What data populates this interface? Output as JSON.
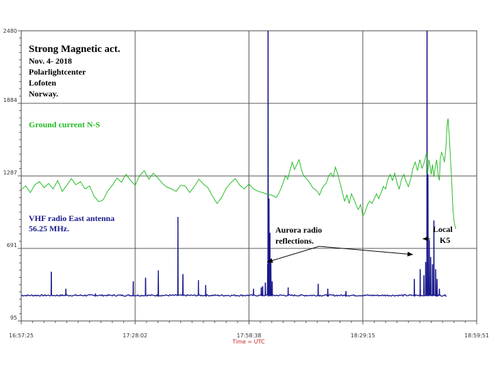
{
  "chart_data": {
    "type": "line",
    "title": "Strong Magnetic act.",
    "info_lines": [
      "Nov. 4- 2018",
      "Polarlightcenter",
      "Lofoten",
      "Norway."
    ],
    "xlabel": "Time = UTC",
    "x_ticks": [
      "16:57:25",
      "17:28:02",
      "17:58:38",
      "18:29:15",
      "18:59:51"
    ],
    "y_ticks": [
      "95",
      "691",
      "1287",
      "1884",
      "2480"
    ],
    "ylim": [
      95,
      2480
    ],
    "x_range_fraction": [
      0,
      1
    ],
    "grid": true,
    "series": [
      {
        "name": "Ground current N-S",
        "name_lines": [
          "Ground current N-S"
        ],
        "color": "#22bb22",
        "points": [
          [
            0.0,
            1175
          ],
          [
            0.01,
            1205
          ],
          [
            0.02,
            1150
          ],
          [
            0.03,
            1215
          ],
          [
            0.04,
            1240
          ],
          [
            0.05,
            1190
          ],
          [
            0.06,
            1225
          ],
          [
            0.07,
            1180
          ],
          [
            0.08,
            1250
          ],
          [
            0.09,
            1160
          ],
          [
            0.1,
            1210
          ],
          [
            0.11,
            1265
          ],
          [
            0.12,
            1215
          ],
          [
            0.13,
            1240
          ],
          [
            0.14,
            1180
          ],
          [
            0.15,
            1205
          ],
          [
            0.16,
            1120
          ],
          [
            0.17,
            1075
          ],
          [
            0.18,
            1090
          ],
          [
            0.19,
            1165
          ],
          [
            0.2,
            1210
          ],
          [
            0.21,
            1270
          ],
          [
            0.22,
            1235
          ],
          [
            0.23,
            1300
          ],
          [
            0.24,
            1250
          ],
          [
            0.25,
            1210
          ],
          [
            0.26,
            1290
          ],
          [
            0.27,
            1330
          ],
          [
            0.28,
            1260
          ],
          [
            0.29,
            1310
          ],
          [
            0.3,
            1270
          ],
          [
            0.31,
            1225
          ],
          [
            0.32,
            1195
          ],
          [
            0.33,
            1180
          ],
          [
            0.34,
            1160
          ],
          [
            0.35,
            1210
          ],
          [
            0.36,
            1205
          ],
          [
            0.37,
            1150
          ],
          [
            0.38,
            1200
          ],
          [
            0.39,
            1260
          ],
          [
            0.4,
            1220
          ],
          [
            0.41,
            1190
          ],
          [
            0.42,
            1120
          ],
          [
            0.43,
            1060
          ],
          [
            0.44,
            1110
          ],
          [
            0.45,
            1185
          ],
          [
            0.46,
            1230
          ],
          [
            0.47,
            1265
          ],
          [
            0.48,
            1210
          ],
          [
            0.49,
            1180
          ],
          [
            0.5,
            1220
          ],
          [
            0.51,
            1180
          ],
          [
            0.52,
            1160
          ],
          [
            0.53,
            1150
          ],
          [
            0.54,
            1135
          ],
          [
            0.55,
            1130
          ],
          [
            0.56,
            1110
          ],
          [
            0.565,
            1140
          ],
          [
            0.57,
            1180
          ],
          [
            0.575,
            1230
          ],
          [
            0.58,
            1290
          ],
          [
            0.585,
            1260
          ],
          [
            0.59,
            1330
          ],
          [
            0.595,
            1400
          ],
          [
            0.6,
            1340
          ],
          [
            0.605,
            1380
          ],
          [
            0.61,
            1420
          ],
          [
            0.615,
            1340
          ],
          [
            0.62,
            1290
          ],
          [
            0.63,
            1250
          ],
          [
            0.64,
            1190
          ],
          [
            0.65,
            1160
          ],
          [
            0.655,
            1130
          ],
          [
            0.66,
            1180
          ],
          [
            0.665,
            1210
          ],
          [
            0.67,
            1230
          ],
          [
            0.675,
            1290
          ],
          [
            0.68,
            1310
          ],
          [
            0.685,
            1280
          ],
          [
            0.69,
            1360
          ],
          [
            0.695,
            1300
          ],
          [
            0.7,
            1230
          ],
          [
            0.705,
            1150
          ],
          [
            0.71,
            1080
          ],
          [
            0.715,
            1130
          ],
          [
            0.72,
            1060
          ],
          [
            0.725,
            1140
          ],
          [
            0.73,
            1100
          ],
          [
            0.735,
            1050
          ],
          [
            0.74,
            1010
          ],
          [
            0.745,
            1050
          ],
          [
            0.75,
            960
          ],
          [
            0.755,
            990
          ],
          [
            0.76,
            1050
          ],
          [
            0.765,
            1080
          ],
          [
            0.77,
            1060
          ],
          [
            0.775,
            1100
          ],
          [
            0.78,
            1140
          ],
          [
            0.785,
            1100
          ],
          [
            0.79,
            1150
          ],
          [
            0.795,
            1200
          ],
          [
            0.8,
            1180
          ],
          [
            0.805,
            1260
          ],
          [
            0.81,
            1300
          ],
          [
            0.815,
            1250
          ],
          [
            0.82,
            1310
          ],
          [
            0.825,
            1230
          ],
          [
            0.83,
            1180
          ],
          [
            0.835,
            1260
          ],
          [
            0.84,
            1300
          ],
          [
            0.845,
            1240
          ],
          [
            0.85,
            1200
          ],
          [
            0.855,
            1260
          ],
          [
            0.86,
            1350
          ],
          [
            0.865,
            1400
          ],
          [
            0.87,
            1330
          ],
          [
            0.875,
            1420
          ],
          [
            0.88,
            1350
          ],
          [
            0.885,
            1400
          ],
          [
            0.89,
            1480
          ],
          [
            0.892,
            1300
          ],
          [
            0.895,
            1420
          ],
          [
            0.898,
            1360
          ],
          [
            0.9,
            1300
          ],
          [
            0.903,
            1380
          ],
          [
            0.906,
            1280
          ],
          [
            0.909,
            1360
          ],
          [
            0.912,
            1420
          ],
          [
            0.915,
            1300
          ],
          [
            0.918,
            1250
          ],
          [
            0.92,
            1430
          ],
          [
            0.923,
            1480
          ],
          [
            0.926,
            1450
          ],
          [
            0.929,
            1400
          ],
          [
            0.932,
            1500
          ],
          [
            0.935,
            1700
          ],
          [
            0.937,
            1760
          ],
          [
            0.94,
            1600
          ],
          [
            0.942,
            1460
          ],
          [
            0.944,
            1320
          ],
          [
            0.946,
            1160
          ],
          [
            0.948,
            1000
          ],
          [
            0.95,
            920
          ],
          [
            0.952,
            880
          ],
          [
            0.954,
            850
          ]
        ]
      },
      {
        "name": "VHF radio East antenna 56.25 MHz.",
        "name_lines": [
          "VHF radio East antenna",
          "56.25 MHz."
        ],
        "color": "#1a1a8c",
        "baseline": 305,
        "spikes": [
          [
            0.066,
            500
          ],
          [
            0.098,
            360
          ],
          [
            0.163,
            320
          ],
          [
            0.246,
            420
          ],
          [
            0.273,
            450
          ],
          [
            0.301,
            510
          ],
          [
            0.344,
            950
          ],
          [
            0.355,
            480
          ],
          [
            0.389,
            430
          ],
          [
            0.405,
            390
          ],
          [
            0.51,
            360
          ],
          [
            0.527,
            370
          ],
          [
            0.53,
            380
          ],
          [
            0.536,
            410
          ],
          [
            0.541,
            560
          ],
          [
            0.542,
            2480
          ],
          [
            0.544,
            1100
          ],
          [
            0.546,
            820
          ],
          [
            0.548,
            600
          ],
          [
            0.551,
            420
          ],
          [
            0.586,
            370
          ],
          [
            0.652,
            400
          ],
          [
            0.673,
            360
          ],
          [
            0.713,
            340
          ],
          [
            0.863,
            440
          ],
          [
            0.876,
            520
          ],
          [
            0.884,
            470
          ],
          [
            0.888,
            580
          ],
          [
            0.891,
            2480
          ],
          [
            0.893,
            1300
          ],
          [
            0.896,
            760
          ],
          [
            0.899,
            620
          ],
          [
            0.903,
            560
          ],
          [
            0.906,
            920
          ],
          [
            0.91,
            520
          ],
          [
            0.913,
            440
          ],
          [
            0.918,
            360
          ]
        ]
      }
    ],
    "annotations": [
      {
        "id": "aurora",
        "lines": [
          "Aurora radio",
          "reflections."
        ]
      },
      {
        "id": "local",
        "lines": [
          "Local",
          "K5"
        ]
      }
    ]
  }
}
